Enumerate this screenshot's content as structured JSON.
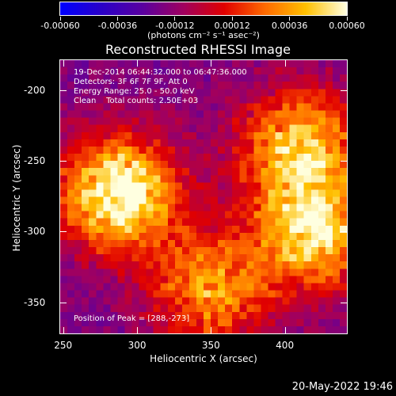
{
  "chart_data": {
    "type": "heatmap",
    "title": "Reconstructed RHESSI Image",
    "xlabel": "Heliocentric X (arcsec)",
    "ylabel": "Heliocentric Y (arcsec)",
    "xlim": [
      248,
      442
    ],
    "ylim": [
      -372,
      -179
    ],
    "xticks": [
      "250",
      "300",
      "350",
      "400"
    ],
    "xtick_values": [
      250,
      300,
      350,
      400
    ],
    "yticks": [
      "-200",
      "-250",
      "-300",
      "-350"
    ],
    "ytick_values": [
      -200,
      -250,
      -300,
      -350
    ],
    "colorbar": {
      "range": [
        -0.0006,
        0.0006
      ],
      "tick_labels": [
        "-0.00060",
        "-0.00036",
        "-0.00012",
        "0.00012",
        "0.00036",
        "0.00060"
      ],
      "tick_values": [
        -0.0006,
        -0.00036,
        -0.00012,
        0.00012,
        0.00036,
        0.0006
      ],
      "units": "(photons cm⁻² s⁻¹ asec⁻²)",
      "colormap": [
        "#0000ff",
        "#2a00c8",
        "#5a00a0",
        "#a00060",
        "#e00000",
        "#ff6a00",
        "#ffc000",
        "#ffffe0"
      ]
    },
    "annotations": {
      "time": "19-Dec-2014 06:44:32.000 to 06:47:36.000",
      "detectors": "Detectors: 3F 6F 7F 9F, Att 0",
      "energy": "Energy Range: 25.0 - 50.0 keV",
      "clean": "Clean    Total counts: 2.50E+03",
      "peak": "Position of Peak = [288,-273]"
    },
    "sources": [
      {
        "x": 288,
        "y": -273,
        "strength": 1.0
      },
      {
        "x": 410,
        "y": -240,
        "strength": 0.75
      },
      {
        "x": 420,
        "y": -300,
        "strength": 0.8
      },
      {
        "x": 350,
        "y": -340,
        "strength": 0.6
      }
    ]
  },
  "footer": {
    "timestamp": "20-May-2022 19:46"
  }
}
